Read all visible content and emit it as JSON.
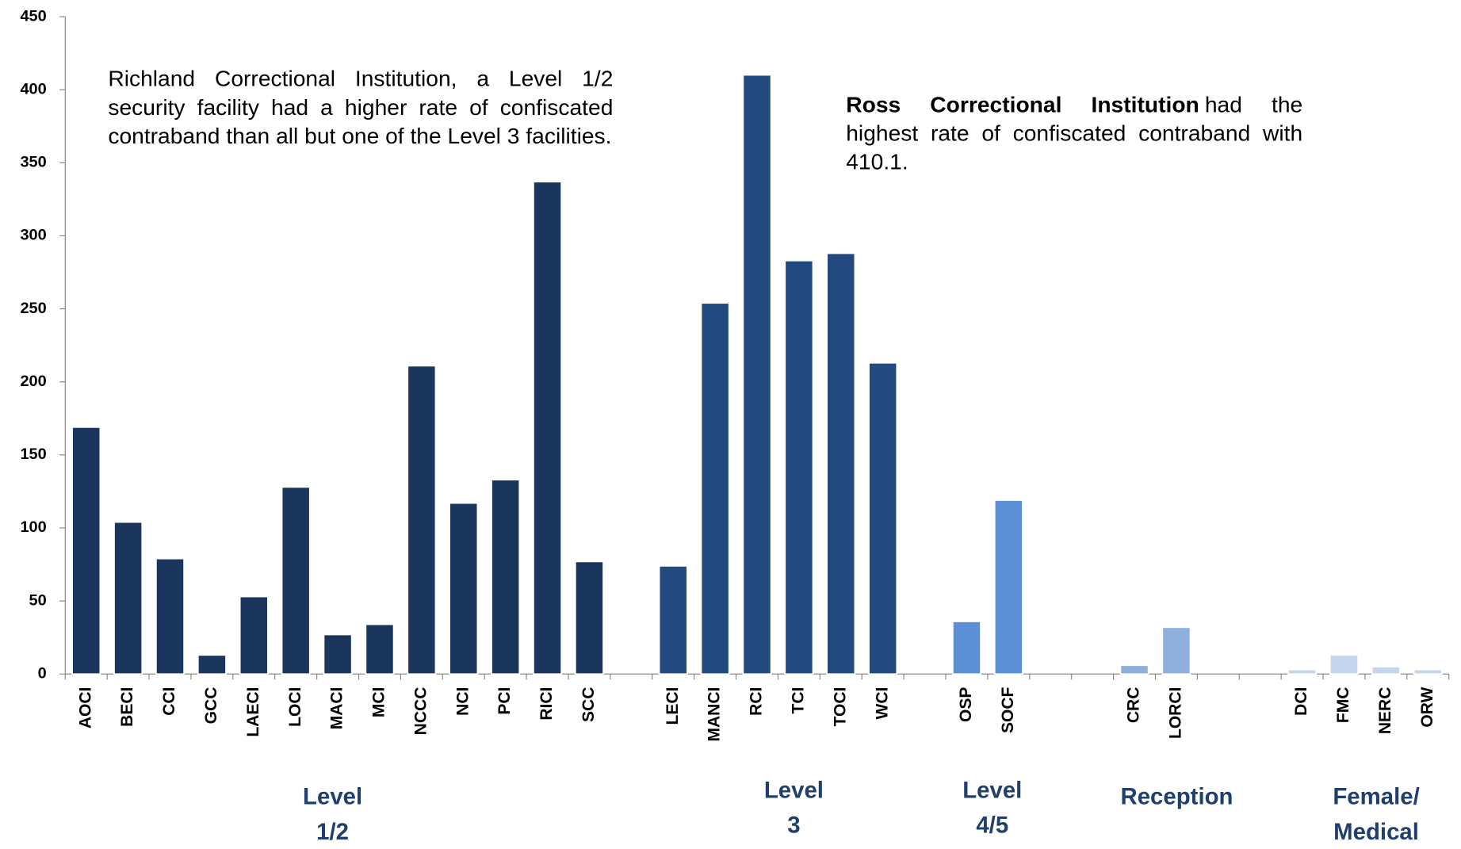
{
  "chart_data": {
    "type": "bar",
    "categories": [
      "AOCI",
      "BECI",
      "CCI",
      "GCC",
      "LAECI",
      "LOCI",
      "MACI",
      "MCI",
      "NCCC",
      "NCI",
      "PCI",
      "RICI",
      "SCC",
      null,
      "LECI",
      "MANCI",
      "RCI",
      "TCI",
      "TOCI",
      "WCI",
      null,
      "OSP",
      "SOCF",
      null,
      null,
      "CRC",
      "LORCI",
      null,
      null,
      "DCI",
      "FMC",
      "NERC",
      "ORW"
    ],
    "values": [
      169,
      104,
      79,
      13,
      53,
      128,
      27,
      34,
      211,
      117,
      133,
      337,
      77,
      null,
      74,
      254,
      410.1,
      283,
      288,
      213,
      null,
      36,
      119,
      null,
      null,
      6,
      32,
      null,
      null,
      3,
      13,
      5,
      3
    ],
    "colors": [
      "#1b365d",
      "#1b365d",
      "#1b365d",
      "#1b365d",
      "#1b365d",
      "#1b365d",
      "#1b365d",
      "#1b365d",
      "#1b365d",
      "#1b365d",
      "#1b365d",
      "#1b365d",
      "#1b365d",
      null,
      "#234a7e",
      "#234a7e",
      "#234a7e",
      "#234a7e",
      "#234a7e",
      "#234a7e",
      null,
      "#5b8fd6",
      "#5b8fd6",
      null,
      null,
      "#8fb0dc",
      "#8fb0dc",
      null,
      null,
      "#c5d5ee",
      "#c5d5ee",
      "#c5d5ee",
      "#c5d5ee"
    ],
    "ylim": [
      0,
      450
    ],
    "yticks": [
      0,
      50,
      100,
      150,
      200,
      250,
      300,
      350,
      400,
      450
    ],
    "groups": [
      {
        "lines": [
          "Level",
          "1/2"
        ]
      },
      {
        "lines": [
          "Level",
          "3"
        ]
      },
      {
        "lines": [
          "Level",
          "4/5"
        ]
      },
      {
        "lines": [
          "Reception"
        ]
      },
      {
        "lines": [
          "Female/",
          "Medical"
        ]
      }
    ],
    "annotations": [
      {
        "text": "Richland Correctional Institution, a Level 1/2 security facility had a higher rate of confiscated contraband than all but one of the Level 3 facilities."
      },
      {
        "bold": "Ross Correctional Institution",
        "text": "had the highest rate of confiscated contraband with 410.1."
      }
    ]
  }
}
